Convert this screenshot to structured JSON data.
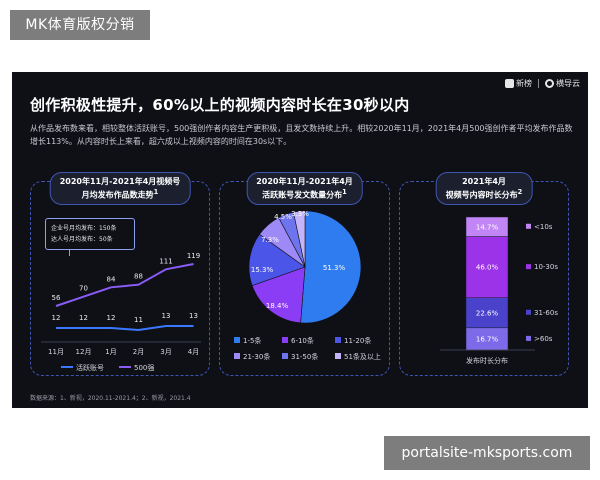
{
  "watermark_top": "MK体育版权分销",
  "watermark_bottom": "portalsite-mksports.com",
  "brand": {
    "left": "新榜",
    "right": "横导云"
  },
  "headline": "创作积极性提升，60%以上的视频内容时长在30秒以内",
  "subtext": "从作品发布数来看，相较整体活跃账号，500强创作者内容生产更积极，且发文数持续上升。相较2020年11月，2021年4月500强创作者平均发布作品数增长113%。从内容时长上来看，超六成以上视频内容的时间在30s以下。",
  "footnote": "数据来源：1、新视，2020.11-2021.4；2、新视，2021.4",
  "colors": {
    "slide_bg": "#0f1016",
    "active_line": "#3a78ff",
    "top500_line": "#8a5cf6",
    "pie": [
      "#2f7bf0",
      "#8b3cf5",
      "#4b55e8",
      "#9e8af6",
      "#6e74ee",
      "#c4b4fb"
    ],
    "bar": [
      "#7d6ae8",
      "#4b42cc",
      "#9d33e8",
      "#c285f5"
    ]
  },
  "chart_data": [
    {
      "type": "line",
      "title_line1": "2020年11月-2021年4月视频号",
      "title_line2": "月均发布作品数走势",
      "title_sup": "1",
      "categories": [
        "11月",
        "12月",
        "1月",
        "2月",
        "3月",
        "4月"
      ],
      "series": [
        {
          "name": "活跃账号",
          "values": [
            12,
            12,
            12,
            11,
            13,
            13
          ]
        },
        {
          "name": "500强",
          "values": [
            56,
            70,
            84,
            88,
            111,
            119
          ]
        }
      ],
      "annotation": [
        "企业号月均发布：150条",
        "达人号月均发布：50条"
      ],
      "ylim": [
        0,
        130
      ]
    },
    {
      "type": "pie",
      "title_line1": "2020年11月-2021年4月",
      "title_line2": "活跃账号发文数量分布",
      "title_sup": "1",
      "labels": [
        "1-5条",
        "6-10条",
        "11-20条",
        "21-30条",
        "31-50条",
        "51条及以上"
      ],
      "values": [
        51.3,
        18.4,
        15.3,
        7.3,
        4.5,
        3.3
      ],
      "value_labels": [
        "51.3%",
        "18.4%",
        "15.3%",
        "7.3%",
        "4.5%",
        "3.3%"
      ]
    },
    {
      "type": "bar",
      "title_line1": "2021年4月",
      "title_line2": "视频号内容时长分布",
      "title_sup": "2",
      "stacked": true,
      "xlabel": "发布时长分布",
      "labels": [
        ">60s",
        "31-60s",
        "10-30s",
        "<10s"
      ],
      "values": [
        16.7,
        22.6,
        46.0,
        14.7
      ],
      "value_labels": [
        "16.7%",
        "22.6%",
        "46.0%",
        "14.7%"
      ]
    }
  ]
}
